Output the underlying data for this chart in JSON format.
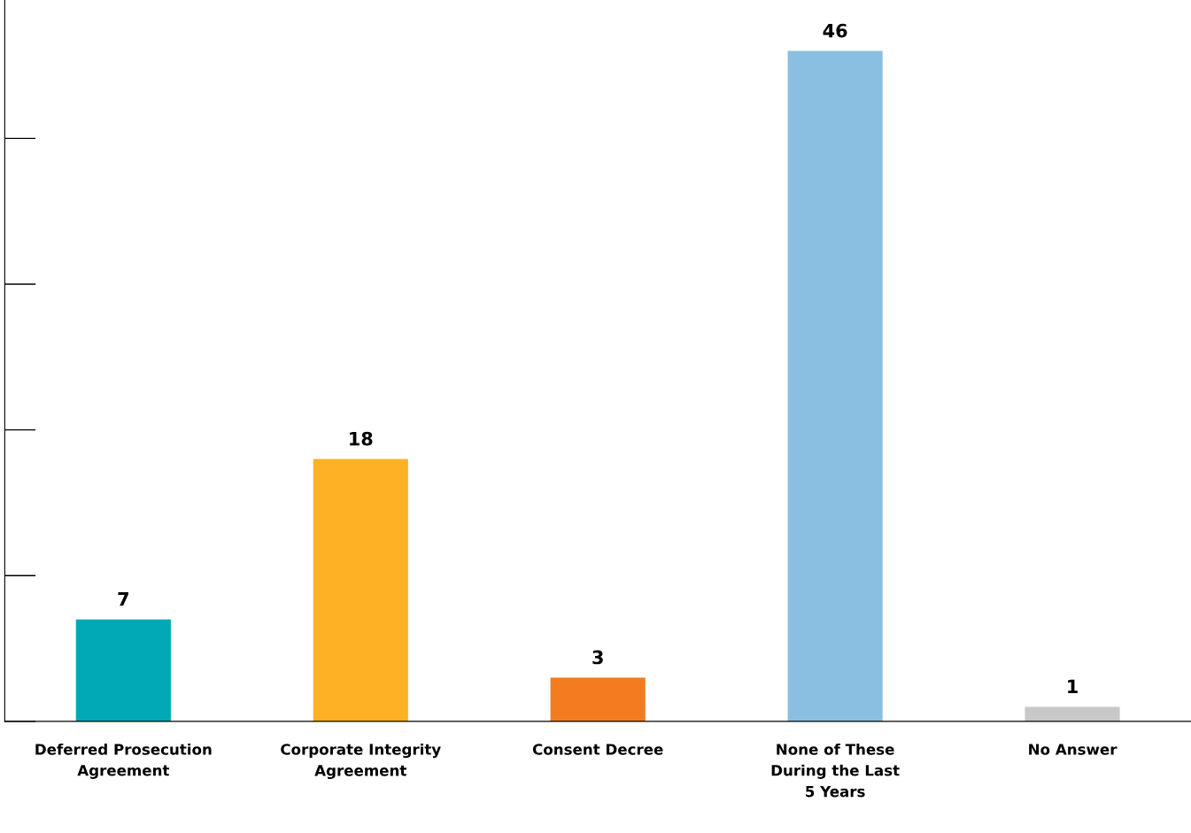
{
  "chart_data": {
    "type": "bar",
    "categories": [
      "Deferred Prosecution\nAgreement",
      "Corporate Integrity\nAgreement",
      "Consent Decree",
      "None of These\nDuring the Last\n5 Years",
      "No Answer"
    ],
    "values": [
      7,
      18,
      3,
      46,
      1
    ],
    "colors": [
      "#00a9b5",
      "#fdb124",
      "#f37c20",
      "#8bbfe2",
      "#c8c8c8"
    ],
    "ylim": [
      0,
      49.5
    ],
    "tick_labels": "x",
    "data_labels": true,
    "grid": false,
    "legend": false
  }
}
